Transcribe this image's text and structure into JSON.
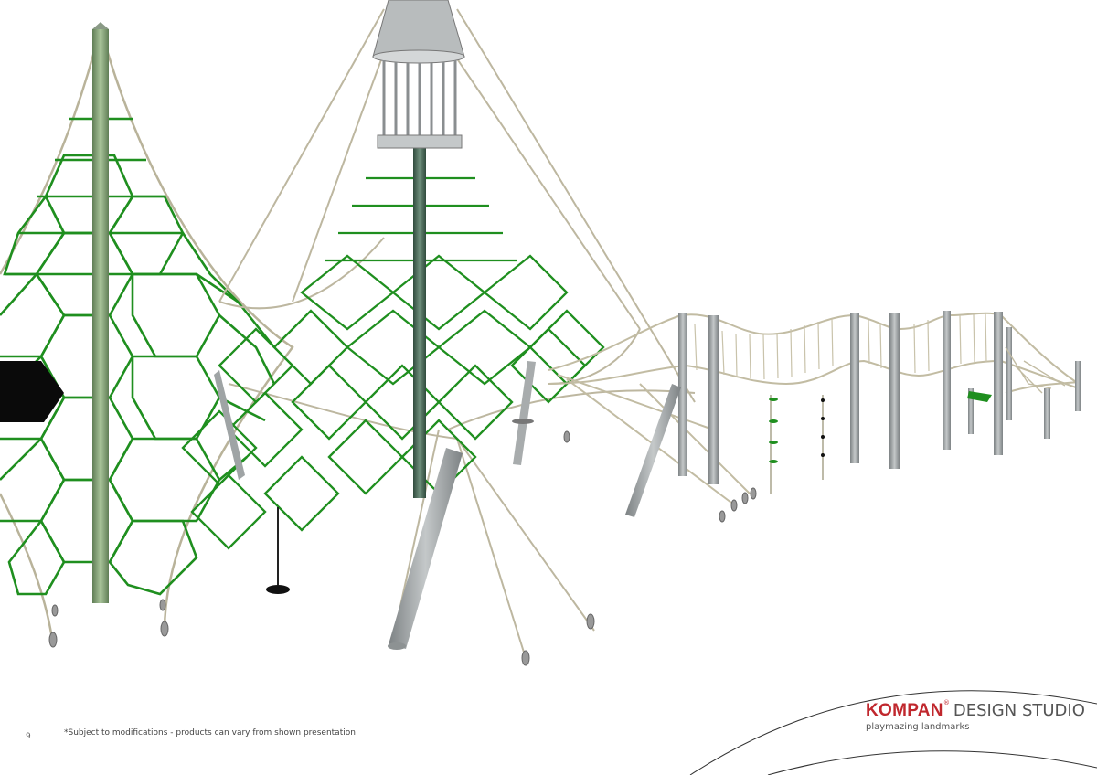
{
  "page": {
    "number": "9",
    "footnote": "*Subject to modifications - products can vary from shown presentation"
  },
  "brand": {
    "name": "KOMPAN",
    "registered": "®",
    "studio": "DESIGN STUDIO",
    "tagline": "playmazing landmarks",
    "color": "#c0272d"
  },
  "colors": {
    "net_green": "#1a8a1a",
    "rope": "#c8c2a8",
    "pole_grey": "#9a9fa0",
    "pole_green": "#8aa878"
  }
}
